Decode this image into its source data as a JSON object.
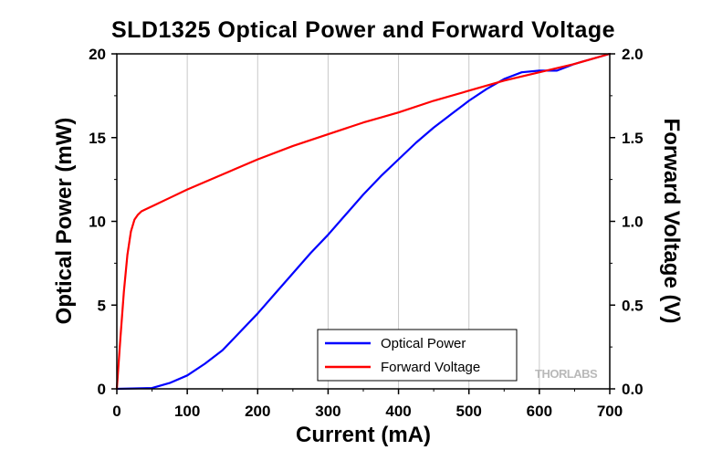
{
  "chart_data": {
    "type": "line",
    "title": "SLD1325 Optical Power and Forward Voltage",
    "xlabel": "Current (mA)",
    "ylabel": "Optical Power (mW)",
    "y2label": "Forward Voltage (V)",
    "xlim": [
      0,
      700
    ],
    "ylim": [
      0,
      20
    ],
    "y2lim": [
      0,
      2.0
    ],
    "xticks": [
      "0",
      "100",
      "200",
      "300",
      "400",
      "500",
      "600",
      "700"
    ],
    "yticks": [
      "0",
      "5",
      "10",
      "15",
      "20"
    ],
    "y2ticks": [
      "0.0",
      "0.5",
      "1.0",
      "1.5",
      "2.0"
    ],
    "grid": "vertical",
    "legend_position": "bottom-right",
    "watermark": "THORLABS",
    "series": [
      {
        "name": "Optical Power",
        "axis": "left",
        "color": "#0000ff",
        "x": [
          0,
          50,
          75,
          100,
          125,
          150,
          175,
          200,
          225,
          250,
          275,
          300,
          325,
          350,
          375,
          400,
          425,
          450,
          475,
          500,
          525,
          550,
          575,
          600,
          625,
          650,
          675,
          700
        ],
        "y": [
          0,
          0.05,
          0.35,
          0.8,
          1.5,
          2.3,
          3.4,
          4.5,
          5.7,
          6.9,
          8.1,
          9.2,
          10.4,
          11.6,
          12.7,
          13.7,
          14.7,
          15.6,
          16.4,
          17.2,
          17.9,
          18.5,
          18.9,
          19.0,
          19.0,
          19.4,
          19.7,
          20.0
        ]
      },
      {
        "name": "Forward Voltage",
        "axis": "right",
        "color": "#ff0000",
        "x": [
          0,
          5,
          10,
          15,
          20,
          25,
          30,
          35,
          40,
          50,
          75,
          100,
          150,
          200,
          250,
          300,
          350,
          400,
          450,
          500,
          550,
          600,
          650,
          700
        ],
        "y": [
          0.0,
          0.3,
          0.58,
          0.8,
          0.94,
          1.01,
          1.04,
          1.06,
          1.07,
          1.09,
          1.14,
          1.19,
          1.28,
          1.37,
          1.45,
          1.52,
          1.59,
          1.65,
          1.72,
          1.78,
          1.84,
          1.89,
          1.94,
          2.0
        ]
      }
    ]
  }
}
